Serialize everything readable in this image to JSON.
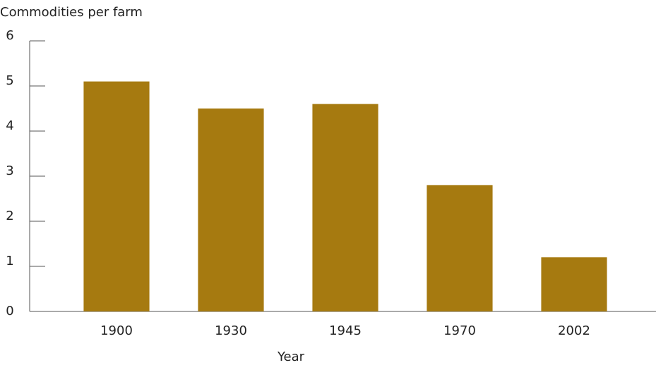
{
  "chart_data": {
    "type": "bar",
    "title": "Commodities per farm",
    "x_label": "Year",
    "categories": [
      "1900",
      "1930",
      "1945",
      "1970",
      "2002"
    ],
    "values": [
      5.1,
      4.5,
      4.6,
      2.8,
      1.2
    ],
    "color": "#a67a10",
    "ylim": [
      0,
      6
    ],
    "yticks": [
      0,
      1,
      2,
      3,
      4,
      5,
      6
    ],
    "grid": false
  }
}
